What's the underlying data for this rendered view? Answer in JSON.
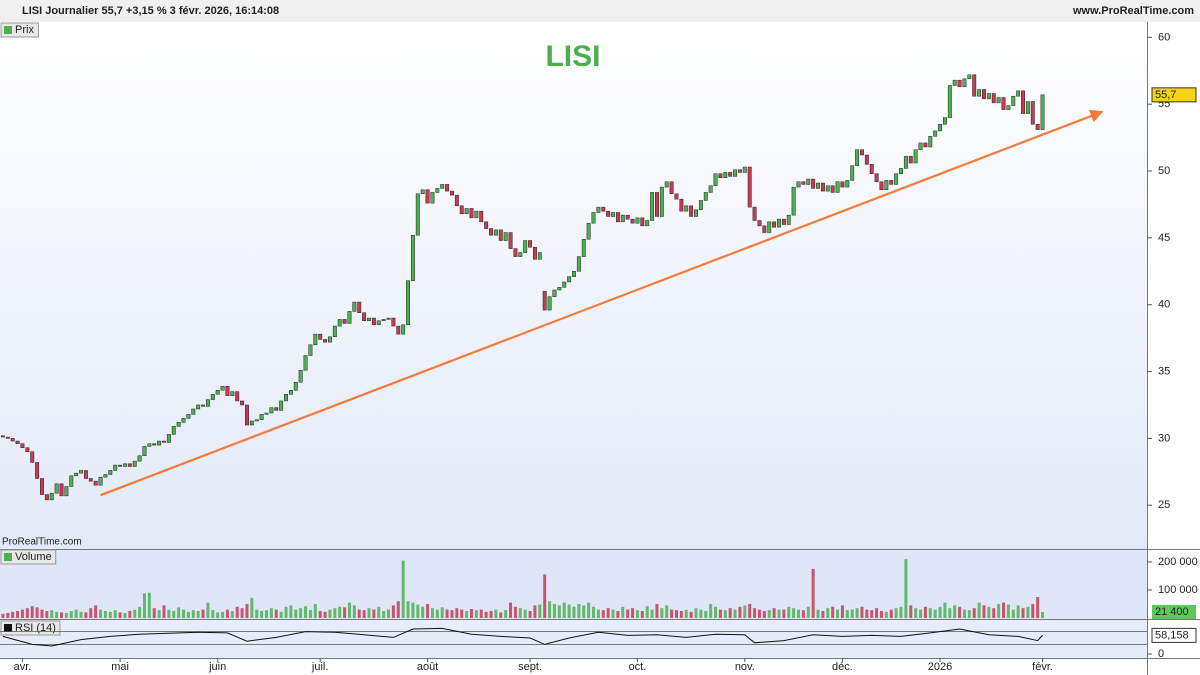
{
  "header": {
    "title": "LISI Journalier 55,7 +3,15 % 3 févr. 2026, 16:14:08",
    "site": "www.ProRealTime.com"
  },
  "watermark": "ProRealTime.com",
  "chart_data": [
    {
      "type": "candlestick",
      "title": "Prix",
      "annotation": "LISI",
      "xlim": [
        -0.6,
        234.4
      ],
      "ylim": [
        21.8,
        61.0
      ],
      "yticks": [
        25,
        30,
        35,
        40,
        45,
        50,
        55,
        60
      ],
      "up_color": "#4cb050",
      "down_color": "#c73a55",
      "last": {
        "value": 55.7,
        "label": "55,7"
      },
      "trendline": {
        "x": [
          20,
          225
        ],
        "y": [
          25.75,
          54.4
        ],
        "color": "#f47a3c"
      },
      "open": [
        30.2,
        30.1,
        30.0,
        29.8,
        29.6,
        29.3,
        29.0,
        28.2,
        27.0,
        25.8,
        25.4,
        25.9,
        26.6,
        25.7,
        26.4,
        27.2,
        27.4,
        27.6,
        27.0,
        26.8,
        26.5,
        27.1,
        27.3,
        27.6,
        28.0,
        27.9,
        28.1,
        27.9,
        28.3,
        28.7,
        29.4,
        29.6,
        29.5,
        29.8,
        29.7,
        30.3,
        30.9,
        31.2,
        31.5,
        31.8,
        32.2,
        32.5,
        32.4,
        32.9,
        33.3,
        33.6,
        33.9,
        33.2,
        33.5,
        32.8,
        32.5,
        31.0,
        31.3,
        31.4,
        31.8,
        31.9,
        32.3,
        32.1,
        32.8,
        33.3,
        33.6,
        34.2,
        35.1,
        36.2,
        37.0,
        37.8,
        37.4,
        37.2,
        37.6,
        38.4,
        38.9,
        38.6,
        39.5,
        40.2,
        39.4,
        38.8,
        39.0,
        38.5,
        38.8,
        38.9,
        39.0,
        38.4,
        37.8,
        38.5,
        41.8,
        45.2,
        48.3,
        48.6,
        47.6,
        48.4,
        48.7,
        49.0,
        48.5,
        48.2,
        47.4,
        46.8,
        47.2,
        46.5,
        47.0,
        46.2,
        45.7,
        45.2,
        45.6,
        44.8,
        45.4,
        44.2,
        43.6,
        43.9,
        44.8,
        44.3,
        43.4,
        41.0,
        39.6,
        40.6,
        41.1,
        41.3,
        41.7,
        42.1,
        42.5,
        43.6,
        44.9,
        46.1,
        46.9,
        47.3,
        47.0,
        46.6,
        46.9,
        46.2,
        46.7,
        46.4,
        46.1,
        46.5,
        45.9,
        46.3,
        48.4,
        46.6,
        48.8,
        49.2,
        48.3,
        47.9,
        47.0,
        47.4,
        46.6,
        47.1,
        47.8,
        48.4,
        48.9,
        49.8,
        49.5,
        49.9,
        49.6,
        50.1,
        49.9,
        50.3,
        47.3,
        46.3,
        45.9,
        45.4,
        46.2,
        45.8,
        46.4,
        46.0,
        46.7,
        48.8,
        49.2,
        49.0,
        49.4,
        48.7,
        49.1,
        48.5,
        48.9,
        48.4,
        49.2,
        48.8,
        49.3,
        50.4,
        51.6,
        51.2,
        50.5,
        49.8,
        49.2,
        48.6,
        49.3,
        49.0,
        49.8,
        50.2,
        51.1,
        50.6,
        51.6,
        52.1,
        51.8,
        52.6,
        53.0,
        53.5,
        54.0,
        56.4,
        56.8,
        56.3,
        56.9,
        57.2,
        55.6,
        56.1,
        55.4,
        55.8,
        55.1,
        55.5,
        54.6,
        54.9,
        55.6,
        56.0,
        54.3,
        55.2,
        53.5,
        53.1
      ],
      "close": [
        30.1,
        30.0,
        29.8,
        29.6,
        29.3,
        29.0,
        28.2,
        27.0,
        25.8,
        25.4,
        25.9,
        26.6,
        25.7,
        26.4,
        27.2,
        27.4,
        27.6,
        27.0,
        26.8,
        26.5,
        27.1,
        27.3,
        27.6,
        28.0,
        27.9,
        28.1,
        27.9,
        28.3,
        28.7,
        29.4,
        29.6,
        29.5,
        29.8,
        29.7,
        30.3,
        30.9,
        31.2,
        31.5,
        31.8,
        32.2,
        32.5,
        32.4,
        32.9,
        33.3,
        33.6,
        33.9,
        33.2,
        33.5,
        32.8,
        32.5,
        31.0,
        31.3,
        31.4,
        31.8,
        31.9,
        32.3,
        32.1,
        32.8,
        33.3,
        33.6,
        34.2,
        35.1,
        36.2,
        37.0,
        37.8,
        37.4,
        37.2,
        37.6,
        38.4,
        38.9,
        38.6,
        39.5,
        40.2,
        39.4,
        38.8,
        39.0,
        38.5,
        38.8,
        38.9,
        39.0,
        38.4,
        37.8,
        38.5,
        41.8,
        45.2,
        48.3,
        48.6,
        47.6,
        48.4,
        48.7,
        49.0,
        48.5,
        48.2,
        47.4,
        46.8,
        47.2,
        46.5,
        47.0,
        46.2,
        45.7,
        45.2,
        45.6,
        44.8,
        45.4,
        44.2,
        43.6,
        43.9,
        44.8,
        44.3,
        43.4,
        43.9,
        39.6,
        40.6,
        41.1,
        41.3,
        41.7,
        42.1,
        42.5,
        43.6,
        44.9,
        46.1,
        46.9,
        47.3,
        47.0,
        46.6,
        46.9,
        46.2,
        46.7,
        46.4,
        46.1,
        46.5,
        45.9,
        46.3,
        48.4,
        46.6,
        48.8,
        49.2,
        48.3,
        47.9,
        47.0,
        47.4,
        46.6,
        47.1,
        47.8,
        48.4,
        48.9,
        49.8,
        49.5,
        49.9,
        49.6,
        50.1,
        49.9,
        50.3,
        47.3,
        46.3,
        45.9,
        45.4,
        46.2,
        45.8,
        46.4,
        46.0,
        46.7,
        48.8,
        49.2,
        49.0,
        49.4,
        48.7,
        49.1,
        48.5,
        48.9,
        48.4,
        49.2,
        48.8,
        49.3,
        50.4,
        51.6,
        51.2,
        50.5,
        49.8,
        49.2,
        48.6,
        49.3,
        49.0,
        49.8,
        50.2,
        51.1,
        50.6,
        51.6,
        52.1,
        51.8,
        52.6,
        53.0,
        53.5,
        54.0,
        56.4,
        56.8,
        56.3,
        56.9,
        57.2,
        55.6,
        56.1,
        55.4,
        55.8,
        55.1,
        55.5,
        54.6,
        54.9,
        55.6,
        56.0,
        54.3,
        55.2,
        53.5,
        53.1,
        55.7
      ]
    },
    {
      "type": "bar",
      "title": "Volume",
      "xlim": [
        -0.6,
        234.4
      ],
      "ylim": [
        0,
        239000
      ],
      "yticks": [
        {
          "value": 100000,
          "label": "100 000"
        },
        {
          "value": 200000,
          "label": "200 000"
        }
      ],
      "last": {
        "value": 21400,
        "label": "21 400"
      },
      "last_color": "#5cc85c",
      "values": [
        15000,
        18000,
        22000,
        25000,
        30000,
        35000,
        42000,
        38000,
        30000,
        25000,
        28000,
        22000,
        20000,
        18000,
        25000,
        30000,
        22000,
        20000,
        35000,
        45000,
        30000,
        25000,
        22000,
        28000,
        20000,
        18000,
        25000,
        30000,
        40000,
        88000,
        90000,
        35000,
        28000,
        45000,
        30000,
        25000,
        38000,
        30000,
        22000,
        28000,
        25000,
        30000,
        55000,
        28000,
        20000,
        22000,
        30000,
        25000,
        40000,
        35000,
        50000,
        72000,
        30000,
        25000,
        28000,
        35000,
        30000,
        22000,
        40000,
        45000,
        30000,
        35000,
        42000,
        28000,
        50000,
        25000,
        22000,
        30000,
        35000,
        40000,
        38000,
        55000,
        45000,
        30000,
        28000,
        35000,
        30000,
        40000,
        25000,
        30000,
        45000,
        60000,
        205000,
        60000,
        55000,
        48000,
        40000,
        50000,
        35000,
        30000,
        38000,
        30000,
        28000,
        35000,
        30000,
        25000,
        32000,
        28000,
        30000,
        22000,
        25000,
        30000,
        20000,
        28000,
        55000,
        40000,
        35000,
        30000,
        25000,
        45000,
        48000,
        155000,
        60000,
        50000,
        45000,
        55000,
        48000,
        40000,
        50000,
        45000,
        55000,
        40000,
        30000,
        28000,
        35000,
        30000,
        25000,
        40000,
        30000,
        35000,
        28000,
        25000,
        42000,
        30000,
        50000,
        35000,
        45000,
        30000,
        28000,
        25000,
        30000,
        22000,
        35000,
        30000,
        25000,
        50000,
        40000,
        30000,
        28000,
        35000,
        30000,
        40000,
        45000,
        50000,
        35000,
        30000,
        25000,
        28000,
        35000,
        30000,
        30000,
        40000,
        35000,
        30000,
        28000,
        40000,
        175000,
        30000,
        25000,
        35000,
        40000,
        30000,
        45000,
        28000,
        30000,
        35000,
        40000,
        30000,
        28000,
        35000,
        25000,
        22000,
        30000,
        35000,
        40000,
        210000,
        45000,
        35000,
        30000,
        40000,
        35000,
        30000,
        40000,
        55000,
        35000,
        45000,
        40000,
        30000,
        28000,
        35000,
        55000,
        45000,
        40000,
        35000,
        50000,
        55000,
        48000,
        30000,
        45000,
        35000,
        40000,
        50000,
        75000,
        21400
      ]
    },
    {
      "type": "line",
      "title": "RSI (14)",
      "color": "#111111",
      "xlim": [
        -0.6,
        234.4
      ],
      "ylim": [
        0,
        100
      ],
      "yticks": [
        0
      ],
      "levels": [
        30,
        70
      ],
      "last": {
        "value": 58.158,
        "label": "58,158"
      },
      "x": [
        0,
        6,
        10,
        16,
        22,
        28,
        34,
        40,
        46,
        50,
        56,
        62,
        68,
        74,
        80,
        84,
        90,
        96,
        102,
        108,
        111,
        116,
        122,
        128,
        134,
        140,
        146,
        152,
        154,
        160,
        166,
        172,
        178,
        184,
        190,
        196,
        202,
        208,
        212,
        213
      ],
      "values": [
        55,
        30,
        25,
        45,
        55,
        62,
        65,
        68,
        66,
        40,
        52,
        70,
        68,
        60,
        52,
        78,
        80,
        62,
        55,
        50,
        30,
        50,
        68,
        58,
        60,
        52,
        62,
        60,
        35,
        42,
        60,
        55,
        58,
        55,
        66,
        78,
        60,
        55,
        42,
        58.158
      ],
      "xticks": [
        {
          "value": 4,
          "label": "avr."
        },
        {
          "value": 24,
          "label": "mai"
        },
        {
          "value": 44,
          "label": "juin"
        },
        {
          "value": 65,
          "label": "juil."
        },
        {
          "value": 87,
          "label": "août"
        },
        {
          "value": 108,
          "label": "sept."
        },
        {
          "value": 130,
          "label": "oct."
        },
        {
          "value": 152,
          "label": "nov."
        },
        {
          "value": 172,
          "label": "déc."
        },
        {
          "value": 192,
          "label": "2026"
        },
        {
          "value": 213,
          "label": "févr."
        }
      ]
    }
  ]
}
